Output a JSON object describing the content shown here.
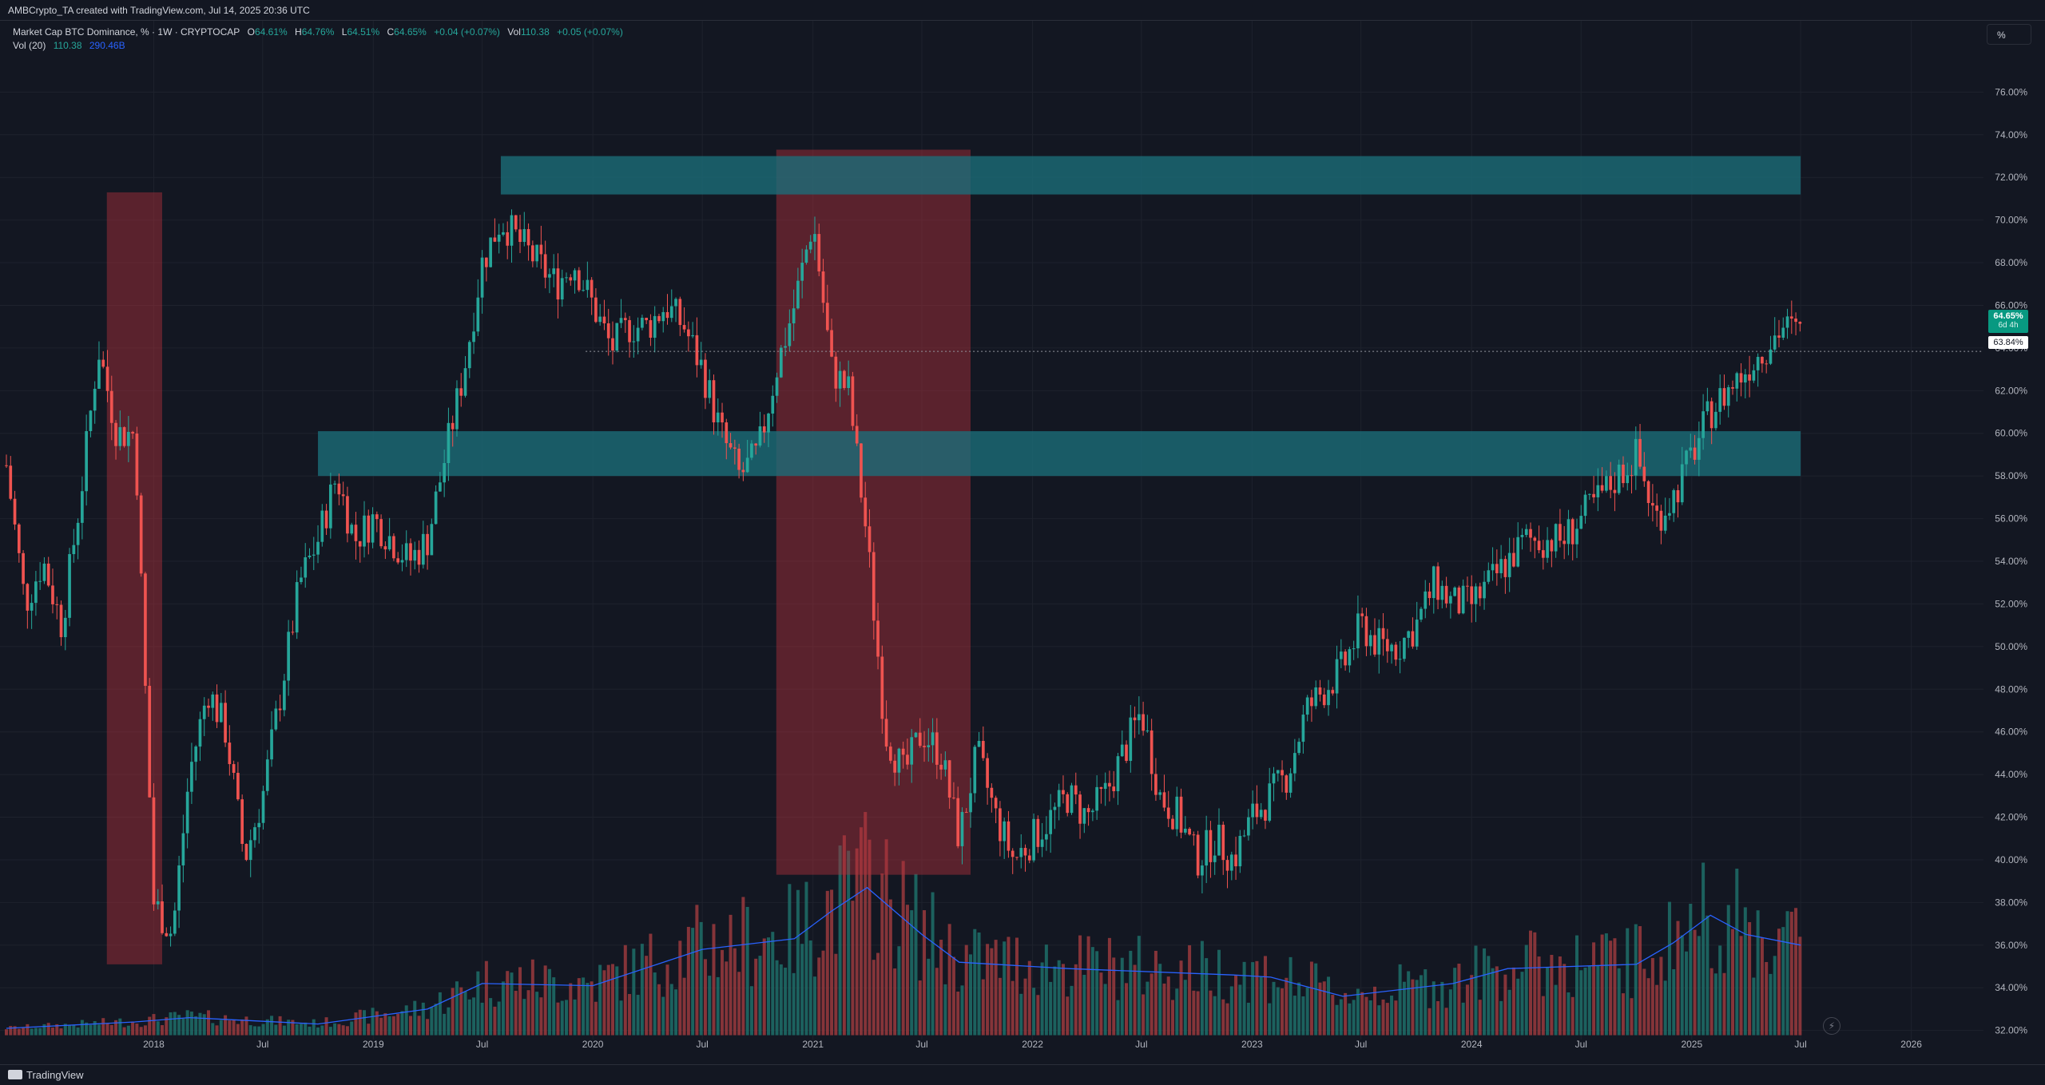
{
  "header": {
    "attribution": "AMBCrypto_TA created with TradingView.com, Jul 14, 2025 20:36 UTC"
  },
  "legend": {
    "symbol": "Market Cap BTC Dominance, %  · 1W · CRYPTOCAP",
    "o_label": "O",
    "o_value": "64.61%",
    "h_label": "H",
    "h_value": "64.76%",
    "l_label": "L",
    "l_value": "64.51%",
    "c_label": "C",
    "c_value": "64.65%",
    "change": "+0.04 (+0.07%)",
    "vol_label": "Vol",
    "vol_value": "110.38",
    "vol_change": "+0.05 (+0.07%)",
    "vol20_label": "Vol (20)",
    "vol20_value": "110.38",
    "vol20_ma": "290.46B"
  },
  "toolbar": {
    "unit_button": "%"
  },
  "price_tag": {
    "price": "64.65%",
    "countdown": "6d 4h"
  },
  "reference_price": "63.84%",
  "footer": {
    "logo": "TradingView"
  },
  "colors": {
    "background": "#131722",
    "up": "#26a69a",
    "down": "#ef5350",
    "zone_teal": "#1b6e7a",
    "zone_red": "#b2303c",
    "ma_line": "#2962ff",
    "grid": "#1e222d"
  },
  "chart_data": {
    "type": "candlestick",
    "interval": "1W",
    "ylabel": "%",
    "ylim": [
      31.5,
      76.8
    ],
    "y_ticks": [
      "32.00%",
      "34.00%",
      "36.00%",
      "38.00%",
      "40.00%",
      "42.00%",
      "44.00%",
      "46.00%",
      "48.00%",
      "50.00%",
      "52.00%",
      "54.00%",
      "56.00%",
      "58.00%",
      "60.00%",
      "62.00%",
      "64.00%",
      "66.00%",
      "68.00%",
      "70.00%",
      "72.00%",
      "74.00%",
      "76.00%"
    ],
    "x_ticks": [
      "2018",
      "Jul",
      "2019",
      "Jul",
      "2020",
      "Jul",
      "2021",
      "Jul",
      "2022",
      "Jul",
      "2023",
      "Jul",
      "2024",
      "Jul",
      "2025",
      "Jul",
      "2026"
    ],
    "x_range": [
      "2017-05-01",
      "2026-05-01"
    ],
    "close_path": [
      [
        "2017-05-01",
        58.5
      ],
      [
        "2017-06-01",
        52
      ],
      [
        "2017-07-01",
        54
      ],
      [
        "2017-08-01",
        51
      ],
      [
        "2017-09-01",
        57
      ],
      [
        "2017-10-01",
        64
      ],
      [
        "2017-11-01",
        60
      ],
      [
        "2017-12-01",
        60
      ],
      [
        "2018-01-01",
        38
      ],
      [
        "2018-02-01",
        36.5
      ],
      [
        "2018-03-01",
        44
      ],
      [
        "2018-04-01",
        48
      ],
      [
        "2018-05-01",
        46
      ],
      [
        "2018-06-01",
        40
      ],
      [
        "2018-07-01",
        43
      ],
      [
        "2018-08-01",
        48
      ],
      [
        "2018-09-01",
        53
      ],
      [
        "2018-10-01",
        55
      ],
      [
        "2018-11-01",
        58
      ],
      [
        "2018-12-01",
        55
      ],
      [
        "2019-01-01",
        56
      ],
      [
        "2019-02-01",
        55
      ],
      [
        "2019-03-01",
        54
      ],
      [
        "2019-04-01",
        55
      ],
      [
        "2019-05-01",
        59
      ],
      [
        "2019-06-01",
        63
      ],
      [
        "2019-07-01",
        68
      ],
      [
        "2019-08-01",
        70
      ],
      [
        "2019-09-01",
        69
      ],
      [
        "2019-10-01",
        68
      ],
      [
        "2019-11-01",
        67
      ],
      [
        "2019-12-01",
        68
      ],
      [
        "2020-01-01",
        66
      ],
      [
        "2020-02-01",
        64
      ],
      [
        "2020-03-01",
        65
      ],
      [
        "2020-04-01",
        65
      ],
      [
        "2020-05-01",
        66
      ],
      [
        "2020-06-01",
        65
      ],
      [
        "2020-07-01",
        63
      ],
      [
        "2020-08-01",
        60
      ],
      [
        "2020-09-01",
        58
      ],
      [
        "2020-10-01",
        59
      ],
      [
        "2020-11-01",
        63
      ],
      [
        "2020-12-01",
        66
      ],
      [
        "2021-01-01",
        70
      ],
      [
        "2021-02-01",
        63
      ],
      [
        "2021-03-01",
        62
      ],
      [
        "2021-04-01",
        55
      ],
      [
        "2021-05-01",
        46
      ],
      [
        "2021-06-01",
        44
      ],
      [
        "2021-07-01",
        46
      ],
      [
        "2021-08-01",
        45
      ],
      [
        "2021-09-01",
        41
      ],
      [
        "2021-10-01",
        45
      ],
      [
        "2021-11-01",
        42
      ],
      [
        "2021-12-01",
        40
      ],
      [
        "2022-01-01",
        41
      ],
      [
        "2022-02-01",
        42
      ],
      [
        "2022-03-01",
        43
      ],
      [
        "2022-04-01",
        42
      ],
      [
        "2022-05-01",
        43
      ],
      [
        "2022-06-01",
        45
      ],
      [
        "2022-07-01",
        47
      ],
      [
        "2022-08-01",
        43
      ],
      [
        "2022-09-01",
        42
      ],
      [
        "2022-10-01",
        40
      ],
      [
        "2022-11-01",
        41
      ],
      [
        "2022-12-01",
        40
      ],
      [
        "2023-01-01",
        42
      ],
      [
        "2023-02-01",
        43
      ],
      [
        "2023-03-01",
        44
      ],
      [
        "2023-04-01",
        47
      ],
      [
        "2023-05-01",
        48
      ],
      [
        "2023-06-01",
        49
      ],
      [
        "2023-07-01",
        51
      ],
      [
        "2023-08-01",
        50
      ],
      [
        "2023-09-01",
        50
      ],
      [
        "2023-10-01",
        51
      ],
      [
        "2023-11-01",
        53
      ],
      [
        "2023-12-01",
        52
      ],
      [
        "2024-01-01",
        52
      ],
      [
        "2024-02-01",
        53
      ],
      [
        "2024-03-01",
        54
      ],
      [
        "2024-04-01",
        55
      ],
      [
        "2024-05-01",
        55
      ],
      [
        "2024-06-01",
        55
      ],
      [
        "2024-07-01",
        56
      ],
      [
        "2024-08-01",
        57
      ],
      [
        "2024-09-01",
        58
      ],
      [
        "2024-10-01",
        59
      ],
      [
        "2024-11-01",
        56
      ],
      [
        "2024-12-01",
        57
      ],
      [
        "2025-01-01",
        59
      ],
      [
        "2025-02-01",
        61
      ],
      [
        "2025-03-01",
        62
      ],
      [
        "2025-04-01",
        63
      ],
      [
        "2025-05-01",
        64
      ],
      [
        "2025-06-01",
        65
      ],
      [
        "2025-07-01",
        64.65
      ]
    ],
    "volume_ma_path": [
      [
        "2017-05-01",
        32.1
      ],
      [
        "2017-12-01",
        32.4
      ],
      [
        "2018-03-01",
        32.6
      ],
      [
        "2018-10-01",
        32.3
      ],
      [
        "2019-04-01",
        33
      ],
      [
        "2019-07-01",
        34.2
      ],
      [
        "2020-01-01",
        34.1
      ],
      [
        "2020-07-01",
        35.8
      ],
      [
        "2020-12-01",
        36.3
      ],
      [
        "2021-02-01",
        37.6
      ],
      [
        "2021-04-01",
        38.7
      ],
      [
        "2021-07-01",
        36.5
      ],
      [
        "2021-09-01",
        35.2
      ],
      [
        "2022-03-01",
        34.9
      ],
      [
        "2022-12-01",
        34.6
      ],
      [
        "2023-02-01",
        34.5
      ],
      [
        "2023-06-01",
        33.6
      ],
      [
        "2023-12-01",
        34.2
      ],
      [
        "2024-03-01",
        34.9
      ],
      [
        "2024-10-01",
        35.1
      ],
      [
        "2024-12-01",
        36.1
      ],
      [
        "2025-02-01",
        37.4
      ],
      [
        "2025-04-01",
        36.5
      ],
      [
        "2025-07-01",
        36
      ]
    ],
    "resistance_zones": [
      {
        "x": [
          "2019-08-01",
          "2025-07-01"
        ],
        "y": [
          71.2,
          73.0
        ]
      },
      {
        "x": [
          "2018-10-01",
          "2025-07-01"
        ],
        "y": [
          58.0,
          60.1
        ]
      }
    ],
    "highlight_zones": [
      {
        "x": [
          "2017-10-15",
          "2018-01-15"
        ],
        "y": [
          35.1,
          71.3
        ]
      },
      {
        "x": [
          "2020-11-01",
          "2021-09-20"
        ],
        "y": [
          39.3,
          73.3
        ]
      }
    ],
    "reference_line": 63.84,
    "last": {
      "open": 64.61,
      "high": 64.76,
      "low": 64.51,
      "close": 64.65
    }
  }
}
